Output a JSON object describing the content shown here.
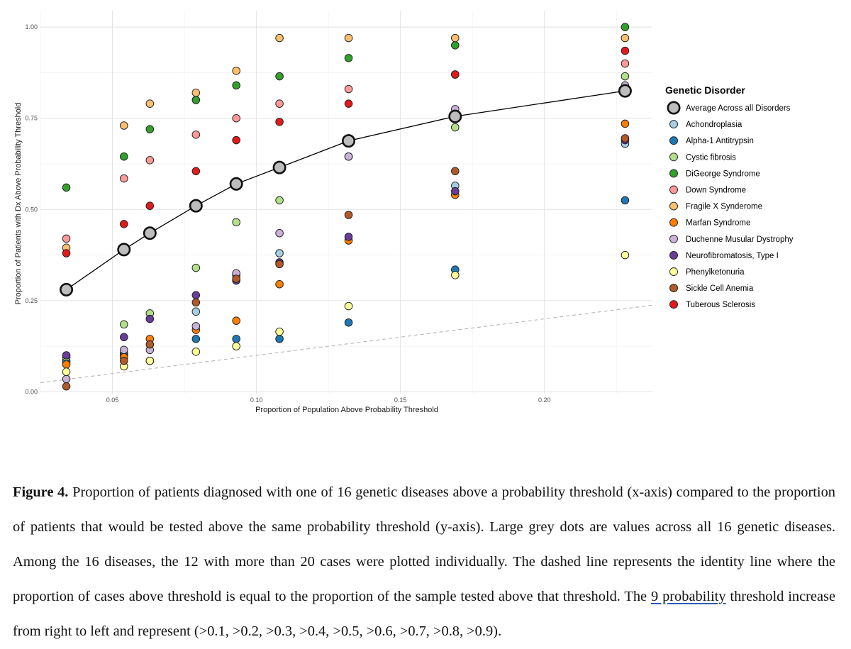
{
  "chart_data": {
    "type": "scatter",
    "xlabel": "Proportion of Population Above Probability Threshold",
    "ylabel": "Proportion of Patients with Dx Above Probability Threshold",
    "xlim": [
      0.025,
      0.2375
    ],
    "ylim": [
      -0.005,
      1.045
    ],
    "x_ticks": [
      0.05,
      0.1,
      0.15,
      0.2
    ],
    "x_tick_labels": [
      "0.05",
      "0.10",
      "0.15",
      "0.20"
    ],
    "y_ticks": [
      0.0,
      0.25,
      0.5,
      0.75,
      1.0
    ],
    "y_tick_labels": [
      "0.00",
      "0.25",
      "0.50",
      "0.75",
      "1.00"
    ],
    "grid": true,
    "identity_line": true,
    "legend_title": "Genetic Disorder",
    "legend_position": "right",
    "x": [
      0.034,
      0.054,
      0.063,
      0.079,
      0.093,
      0.108,
      0.132,
      0.169,
      0.228
    ],
    "average": {
      "name": "Average Across all Disorders",
      "color": "#bdbdbd",
      "values": [
        0.28,
        0.39,
        0.435,
        0.51,
        0.57,
        0.615,
        0.688,
        0.755,
        0.825
      ]
    },
    "series": [
      {
        "name": "Achondroplasia",
        "color": "#a6cee3",
        "values": [
          0.08,
          0.105,
          0.085,
          0.22,
          0.32,
          0.38,
          0.645,
          0.565,
          0.68
        ]
      },
      {
        "name": "Alpha-1 Antitrypsin",
        "color": "#1f78b4",
        "values": [
          0.085,
          0.1,
          0.085,
          0.145,
          0.145,
          0.145,
          0.19,
          0.335,
          0.525
        ]
      },
      {
        "name": "Cystic fibrosis",
        "color": "#b2df8a",
        "values": [
          0.095,
          0.185,
          0.215,
          0.34,
          0.465,
          0.525,
          0.645,
          0.725,
          0.865
        ]
      },
      {
        "name": "DiGeorge Syndrome",
        "color": "#33a02c",
        "values": [
          0.56,
          0.645,
          0.72,
          0.8,
          0.84,
          0.865,
          0.915,
          0.95,
          1.0
        ]
      },
      {
        "name": "Down Syndrome",
        "color": "#fb9a99",
        "values": [
          0.42,
          0.585,
          0.635,
          0.705,
          0.75,
          0.79,
          0.83,
          0.87,
          0.9
        ]
      },
      {
        "name": "Fragile X Synderome",
        "color": "#fdbf6f",
        "values": [
          0.395,
          0.73,
          0.79,
          0.82,
          0.88,
          0.97,
          0.97,
          0.97,
          0.97
        ]
      },
      {
        "name": "Marfan Syndrome",
        "color": "#ff7f00",
        "values": [
          0.075,
          0.095,
          0.145,
          0.17,
          0.195,
          0.295,
          0.415,
          0.54,
          0.735
        ]
      },
      {
        "name": "Duchenne Musular Dystrophy",
        "color": "#cab2d6",
        "values": [
          0.035,
          0.115,
          0.115,
          0.18,
          0.325,
          0.435,
          0.645,
          0.775,
          0.84
        ]
      },
      {
        "name": "Neurofibromatosis, Type I",
        "color": "#6a3d9a",
        "values": [
          0.1,
          0.15,
          0.2,
          0.265,
          0.305,
          0.355,
          0.425,
          0.55,
          0.69
        ]
      },
      {
        "name": "Phenylketonuria",
        "color": "#ffff99",
        "values": [
          0.055,
          0.07,
          0.085,
          0.11,
          0.125,
          0.165,
          0.235,
          0.32,
          0.375
        ]
      },
      {
        "name": "Sickle Cell Anemia",
        "color": "#b15928",
        "values": [
          0.015,
          0.085,
          0.13,
          0.245,
          0.31,
          0.35,
          0.485,
          0.605,
          0.695
        ]
      },
      {
        "name": "Tuberous Sclerosis",
        "color": "#e31a1c",
        "values": [
          0.38,
          0.46,
          0.51,
          0.605,
          0.69,
          0.74,
          0.79,
          0.87,
          0.935
        ]
      }
    ]
  },
  "caption": {
    "label": "Figure 4.",
    "text_before_link": " Proportion of patients diagnosed with one of 16 genetic diseases above a probability threshold (x-axis) compared to the proportion of patients that would be tested above the same probability threshold (y-axis). Large grey dots are values across all 16 genetic diseases. Among the 16 diseases, the 12 with more than 20 cases were plotted individually. The dashed line represents the identity line where the proportion of cases above threshold is equal to the proportion of the sample tested above that threshold. The ",
    "link_text": "9 probability",
    "text_after_link": " threshold increase from right to left and represent (>0.1, >0.2, >0.3, >0.4, >0.5, >0.6, >0.7, >0.8, >0.9)."
  }
}
